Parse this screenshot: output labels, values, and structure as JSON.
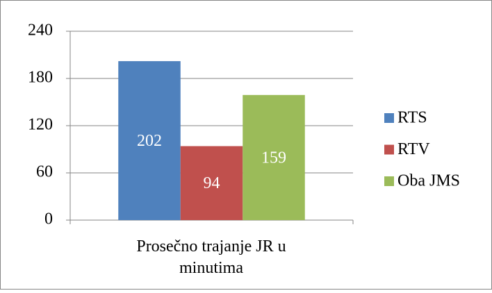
{
  "chart_data": {
    "type": "bar",
    "categories": [
      "Prosečno trajanje JR u minutima"
    ],
    "series": [
      {
        "name": "RTS",
        "color": "#4f81bd",
        "values": [
          202
        ]
      },
      {
        "name": "RTV",
        "color": "#c0504d",
        "values": [
          94
        ]
      },
      {
        "name": "Oba JMS",
        "color": "#9bbb59",
        "values": [
          159
        ]
      }
    ],
    "ylim": [
      0,
      240
    ],
    "yticks": [
      0,
      60,
      120,
      180,
      240
    ],
    "grid": true,
    "legend": "right"
  }
}
